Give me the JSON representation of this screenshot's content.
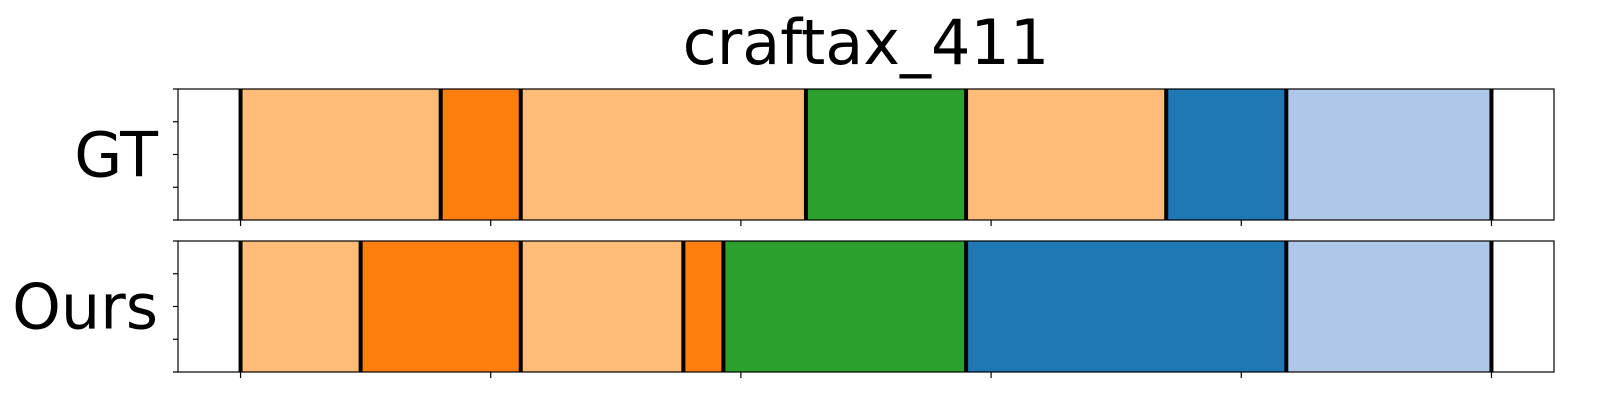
{
  "chart_data": {
    "type": "segmentation",
    "title": "craftax_411",
    "x_range": [
      0,
      550
    ],
    "x_ticks": [
      25,
      125,
      225,
      325,
      425,
      525
    ],
    "rows": [
      {
        "label": "GT",
        "segments": [
          {
            "start": 25,
            "end": 105,
            "color": "#ffbb78"
          },
          {
            "start": 105,
            "end": 137,
            "color": "#ff7f0e"
          },
          {
            "start": 137,
            "end": 251,
            "color": "#ffbb78"
          },
          {
            "start": 251,
            "end": 315,
            "color": "#2ca02c"
          },
          {
            "start": 315,
            "end": 395,
            "color": "#ffbb78"
          },
          {
            "start": 395,
            "end": 443,
            "color": "#1f77b4"
          },
          {
            "start": 443,
            "end": 525,
            "color": "#aec7e8"
          }
        ]
      },
      {
        "label": "Ours",
        "segments": [
          {
            "start": 25,
            "end": 73,
            "color": "#ffbb78"
          },
          {
            "start": 73,
            "end": 137,
            "color": "#ff7f0e"
          },
          {
            "start": 137,
            "end": 202,
            "color": "#ffbb78"
          },
          {
            "start": 202,
            "end": 218,
            "color": "#ff7f0e"
          },
          {
            "start": 218,
            "end": 315,
            "color": "#2ca02c"
          },
          {
            "start": 315,
            "end": 443,
            "color": "#1f77b4"
          },
          {
            "start": 443,
            "end": 525,
            "color": "#aec7e8"
          }
        ]
      }
    ]
  }
}
